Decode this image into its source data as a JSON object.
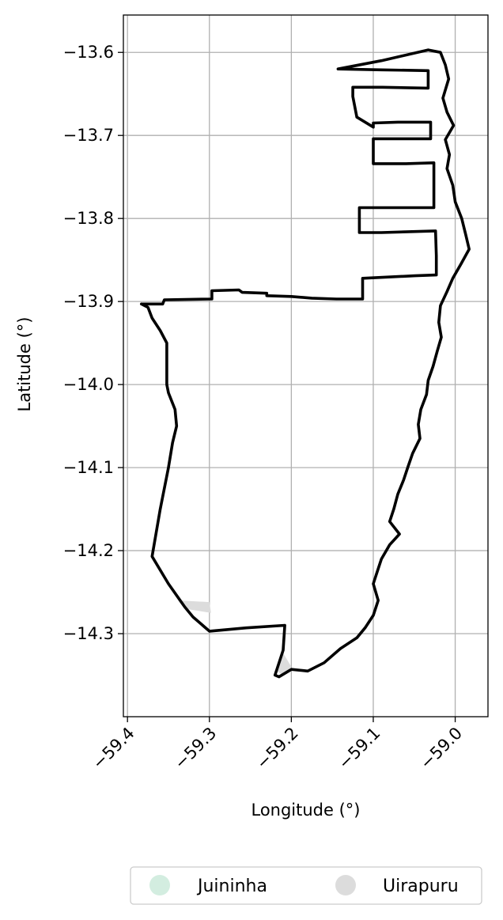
{
  "chart_data": {
    "type": "map",
    "xlabel": "Longitude (°)",
    "ylabel": "Latitude (°)",
    "xlim": [
      -59.405,
      -58.96
    ],
    "ylim": [
      -14.4,
      -13.555
    ],
    "x_ticks": [
      -59.4,
      -59.3,
      -59.2,
      -59.1,
      -59.0
    ],
    "x_tick_labels": [
      "−59.4",
      "−59.3",
      "−59.2",
      "−59.1",
      "−59.0"
    ],
    "y_ticks": [
      -13.6,
      -13.7,
      -13.8,
      -13.9,
      -14.0,
      -14.1,
      -14.2,
      -14.3
    ],
    "y_tick_labels": [
      "−13.6",
      "−13.7",
      "−13.8",
      "−13.9",
      "−14.0",
      "−14.1",
      "−14.2",
      "−14.3"
    ],
    "grid": true,
    "legend": {
      "placement": "bottom-center",
      "entries": [
        {
          "label": "Juininha",
          "color": "#d3ede0"
        },
        {
          "label": "Uirapuru",
          "color": "#dcdcdc"
        }
      ]
    },
    "boundary": {
      "color": "#000000",
      "points": [
        [
          -59.383,
          -13.903
        ],
        [
          -59.357,
          -13.903
        ],
        [
          -59.355,
          -13.898
        ],
        [
          -59.297,
          -13.897
        ],
        [
          -59.297,
          -13.887
        ],
        [
          -59.264,
          -13.886
        ],
        [
          -59.26,
          -13.889
        ],
        [
          -59.23,
          -13.89
        ],
        [
          -59.23,
          -13.893
        ],
        [
          -59.2,
          -13.894
        ],
        [
          -59.175,
          -13.896
        ],
        [
          -59.145,
          -13.897
        ],
        [
          -59.113,
          -13.897
        ],
        [
          -59.113,
          -13.872
        ],
        [
          -59.049,
          -13.869
        ],
        [
          -59.023,
          -13.868
        ],
        [
          -59.023,
          -13.845
        ],
        [
          -59.024,
          -13.815
        ],
        [
          -59.09,
          -13.817
        ],
        [
          -59.117,
          -13.817
        ],
        [
          -59.117,
          -13.787
        ],
        [
          -59.062,
          -13.787
        ],
        [
          -59.026,
          -13.787
        ],
        [
          -59.026,
          -13.733
        ],
        [
          -59.06,
          -13.734
        ],
        [
          -59.1,
          -13.734
        ],
        [
          -59.1,
          -13.704
        ],
        [
          -59.065,
          -13.704
        ],
        [
          -59.03,
          -13.704
        ],
        [
          -59.03,
          -13.684
        ],
        [
          -59.07,
          -13.684
        ],
        [
          -59.1,
          -13.685
        ],
        [
          -59.1,
          -13.69
        ],
        [
          -59.12,
          -13.678
        ],
        [
          -59.125,
          -13.653
        ],
        [
          -59.125,
          -13.642
        ],
        [
          -59.089,
          -13.642
        ],
        [
          -59.033,
          -13.643
        ],
        [
          -59.033,
          -13.622
        ],
        [
          -59.09,
          -13.621
        ],
        [
          -59.143,
          -13.62
        ],
        [
          -59.09,
          -13.61
        ],
        [
          -59.033,
          -13.597
        ],
        [
          -59.018,
          -13.6
        ],
        [
          -59.012,
          -13.615
        ],
        [
          -59.008,
          -13.632
        ],
        [
          -59.015,
          -13.655
        ],
        [
          -59.01,
          -13.672
        ],
        [
          -59.002,
          -13.688
        ],
        [
          -59.012,
          -13.705
        ],
        [
          -59.007,
          -13.723
        ],
        [
          -59.01,
          -13.74
        ],
        [
          -59.003,
          -13.76
        ],
        [
          -59.0,
          -13.78
        ],
        [
          -58.992,
          -13.8
        ],
        [
          -58.987,
          -13.82
        ],
        [
          -58.983,
          -13.837
        ],
        [
          -58.993,
          -13.855
        ],
        [
          -59.003,
          -13.872
        ],
        [
          -59.01,
          -13.888
        ],
        [
          -59.018,
          -13.905
        ],
        [
          -59.02,
          -13.925
        ],
        [
          -59.017,
          -13.943
        ],
        [
          -59.022,
          -13.96
        ],
        [
          -59.027,
          -13.978
        ],
        [
          -59.033,
          -13.995
        ],
        [
          -59.035,
          -14.012
        ],
        [
          -59.042,
          -14.03
        ],
        [
          -59.045,
          -14.048
        ],
        [
          -59.043,
          -14.065
        ],
        [
          -59.052,
          -14.083
        ],
        [
          -59.058,
          -14.1
        ],
        [
          -59.063,
          -14.115
        ],
        [
          -59.07,
          -14.132
        ],
        [
          -59.075,
          -14.15
        ],
        [
          -59.08,
          -14.165
        ],
        [
          -59.068,
          -14.18
        ],
        [
          -59.08,
          -14.193
        ],
        [
          -59.09,
          -14.21
        ],
        [
          -59.095,
          -14.225
        ],
        [
          -59.1,
          -14.24
        ],
        [
          -59.094,
          -14.26
        ],
        [
          -59.1,
          -14.278
        ],
        [
          -59.11,
          -14.293
        ],
        [
          -59.12,
          -14.305
        ],
        [
          -59.14,
          -14.318
        ],
        [
          -59.16,
          -14.335
        ],
        [
          -59.18,
          -14.345
        ],
        [
          -59.2,
          -14.343
        ],
        [
          -59.215,
          -14.352
        ],
        [
          -59.22,
          -14.35
        ],
        [
          -59.21,
          -14.32
        ],
        [
          -59.208,
          -14.29
        ],
        [
          -59.255,
          -14.293
        ],
        [
          -59.3,
          -14.297
        ],
        [
          -59.32,
          -14.28
        ],
        [
          -59.33,
          -14.268
        ],
        [
          -59.35,
          -14.24
        ],
        [
          -59.37,
          -14.207
        ],
        [
          -59.36,
          -14.15
        ],
        [
          -59.35,
          -14.1
        ],
        [
          -59.345,
          -14.07
        ],
        [
          -59.34,
          -14.05
        ],
        [
          -59.342,
          -14.03
        ],
        [
          -59.35,
          -14.01
        ],
        [
          -59.352,
          -14.0
        ],
        [
          -59.352,
          -13.95
        ],
        [
          -59.36,
          -13.935
        ],
        [
          -59.37,
          -13.92
        ],
        [
          -59.375,
          -13.907
        ],
        [
          -59.383,
          -13.903
        ]
      ]
    },
    "uirapuru_fills": [
      {
        "color": "#dcdcdc",
        "points": [
          [
            -59.338,
            -14.26
          ],
          [
            -59.3,
            -14.262
          ],
          [
            -59.298,
            -14.275
          ],
          [
            -59.33,
            -14.27
          ]
        ]
      },
      {
        "color": "#dcdcdc",
        "points": [
          [
            -59.212,
            -14.32
          ],
          [
            -59.2,
            -14.34
          ],
          [
            -59.21,
            -14.35
          ],
          [
            -59.218,
            -14.345
          ]
        ]
      }
    ]
  }
}
